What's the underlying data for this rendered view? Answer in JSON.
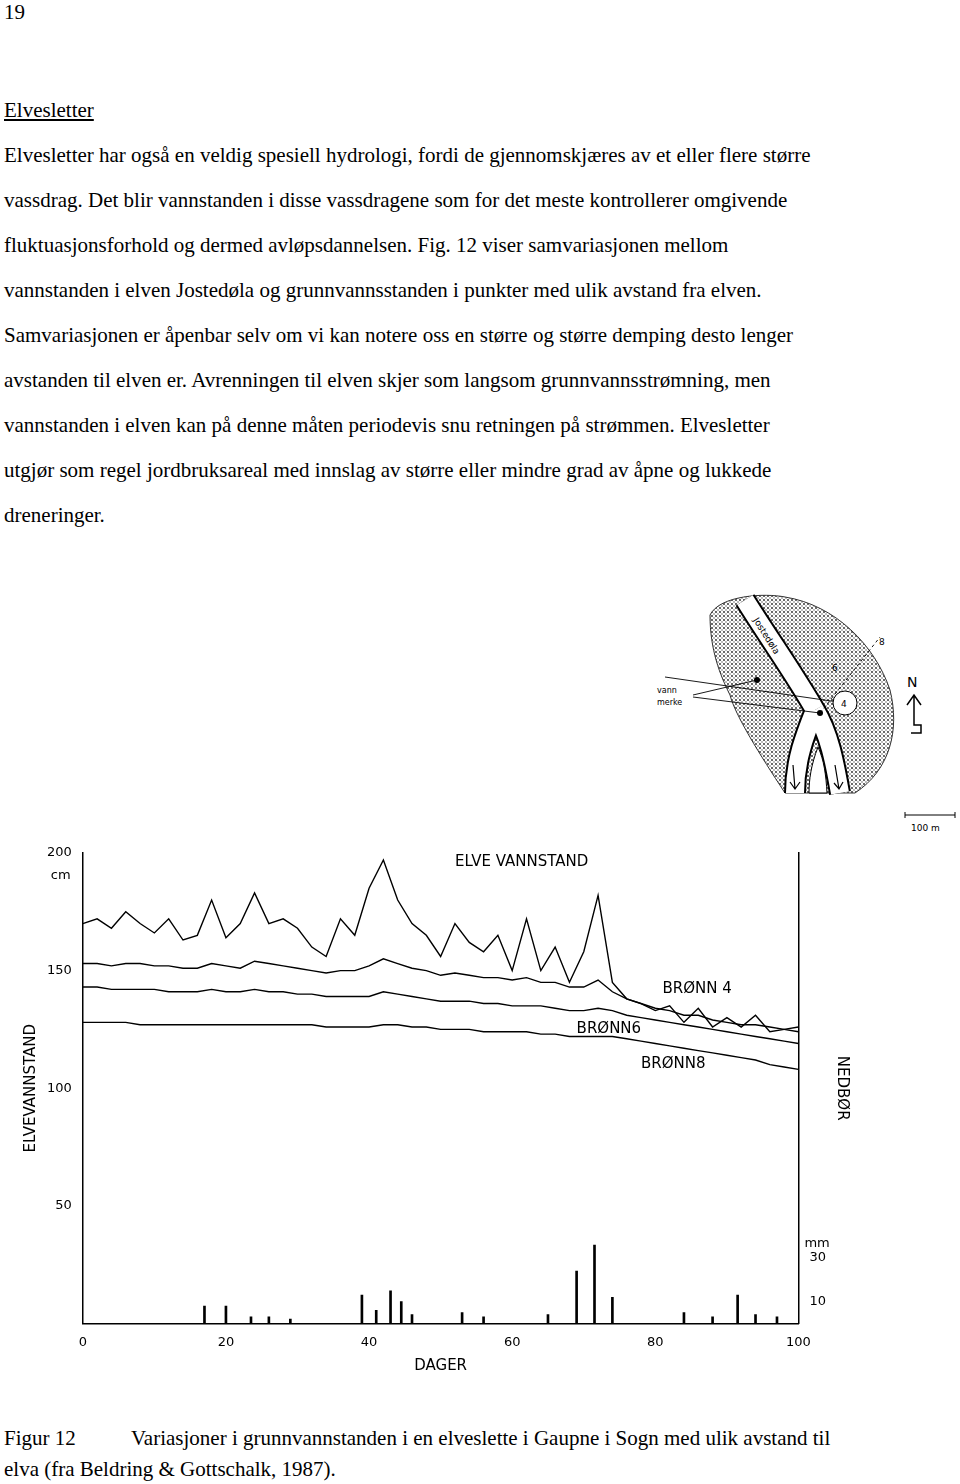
{
  "page_number": "19",
  "heading": "Elvesletter",
  "paragraph_lines": [
    "Elvesletter har også en veldig spesiell hydrologi, fordi de gjennomskjæres av et eller flere større",
    "vassdrag. Det blir vannstanden i disse vassdragene som for det meste kontrollerer omgivende",
    "fluktuasjonsforhold og dermed avløpsdannelsen. Fig. 12 viser samvariasjonen mellom",
    "vannstanden i elven Jostedøla og grunnvannsstanden i punkter med ulik avstand fra elven.",
    "Samvariasjonen er åpenbar selv om vi kan notere oss en større og større demping desto lenger",
    "avstanden til elven er. Avrenningen til elven skjer som langsom grunnvannsstrømning, men",
    "vannstanden i elven kan på denne måten periodevis snu retningen på strømmen. Elvesletter",
    "utgjør som regel jordbruksareal med innslag av større eller mindre grad av åpne og lukkede",
    "dreneringer."
  ],
  "map": {
    "river": "Jostedøla",
    "gauge_lines": [
      "vann",
      "merke"
    ],
    "wells": [
      "8",
      "6",
      "4"
    ],
    "north": "N",
    "scale": "100 m"
  },
  "chart_data": {
    "type": "line",
    "xlabel": "DAGER",
    "ylabel": "ELVEVANNSTAND",
    "y_unit": "cm",
    "y2label": "NEDBØR",
    "y2_unit": "mm",
    "x": [
      0,
      2,
      4,
      6,
      8,
      10,
      12,
      14,
      16,
      18,
      20,
      22,
      24,
      26,
      28,
      30,
      32,
      34,
      36,
      38,
      40,
      42,
      44,
      46,
      48,
      50,
      52,
      54,
      56,
      58,
      60,
      62,
      64,
      66,
      68,
      70,
      72,
      74,
      76,
      78,
      80,
      82,
      84,
      86,
      88,
      90,
      92,
      94,
      96,
      98,
      100
    ],
    "xlim": [
      0,
      100
    ],
    "xticks": [
      0,
      20,
      40,
      60,
      80,
      100
    ],
    "ylim": [
      0,
      200
    ],
    "yticks": [
      50,
      100,
      150,
      200
    ],
    "y2lim": [
      0,
      216
    ],
    "y2ticks": [
      10,
      30
    ],
    "grid": false,
    "series": [
      {
        "name": "ELVE VANNSTAND",
        "color": "#000000",
        "values": [
          170,
          172,
          168,
          175,
          170,
          166,
          172,
          163,
          165,
          180,
          164,
          170,
          183,
          170,
          172,
          168,
          160,
          156,
          172,
          165,
          185,
          197,
          180,
          170,
          165,
          156,
          170,
          162,
          158,
          165,
          150,
          172,
          150,
          160,
          145,
          158,
          182,
          145,
          138,
          136,
          133,
          135,
          128,
          134,
          126,
          130,
          126,
          131,
          124,
          125,
          126
        ]
      },
      {
        "name": "BRØNN 4",
        "color": "#000000",
        "values": [
          153,
          153,
          152,
          153,
          153,
          152,
          152,
          151,
          151,
          153,
          152,
          151,
          154,
          153,
          152,
          151,
          150,
          149,
          150,
          150,
          152,
          155,
          153,
          151,
          150,
          148,
          149,
          148,
          147,
          147,
          146,
          147,
          145,
          145,
          143,
          143,
          146,
          141,
          138,
          136,
          134,
          133,
          131,
          131,
          129,
          128,
          127,
          127,
          126,
          125,
          124
        ]
      },
      {
        "name": "BRØNN6",
        "color": "#000000",
        "values": [
          143,
          143,
          142,
          142,
          142,
          142,
          141,
          141,
          141,
          142,
          141,
          141,
          142,
          141,
          141,
          140,
          140,
          139,
          139,
          139,
          139,
          141,
          140,
          139,
          138,
          137,
          137,
          137,
          136,
          136,
          135,
          135,
          135,
          134,
          133,
          133,
          134,
          133,
          131,
          130,
          129,
          128,
          127,
          126,
          125,
          124,
          123,
          122,
          121,
          120,
          119
        ]
      },
      {
        "name": "BRØNN8",
        "color": "#000000",
        "values": [
          128,
          128,
          128,
          128,
          127,
          127,
          127,
          127,
          127,
          127,
          127,
          127,
          127,
          127,
          127,
          127,
          127,
          126,
          126,
          126,
          126,
          127,
          127,
          126,
          126,
          125,
          125,
          125,
          124,
          124,
          124,
          124,
          123,
          123,
          122,
          122,
          122,
          122,
          121,
          120,
          119,
          118,
          117,
          116,
          115,
          114,
          113,
          112,
          110,
          109,
          108
        ]
      },
      {
        "type": "bar",
        "axis": "y2",
        "color": "#000000",
        "x": [
          17,
          20,
          23.5,
          26,
          29,
          39,
          41,
          43,
          44.5,
          46,
          53,
          56,
          65,
          69,
          71.5,
          74,
          84,
          88,
          91.5,
          94,
          97
        ],
        "values": [
          8,
          8,
          3,
          3,
          2,
          13,
          6,
          15,
          10,
          4,
          5,
          3,
          4,
          24,
          36,
          12,
          5,
          3,
          13,
          4,
          3
        ]
      }
    ]
  },
  "caption": {
    "label": "Figur 12",
    "lines": [
      "Variasjoner i grunnvannstanden i en elveslette i Gaupne i Sogn med ulik avstand til",
      "elva (fra Beldring & Gottschalk, 1987)."
    ]
  }
}
